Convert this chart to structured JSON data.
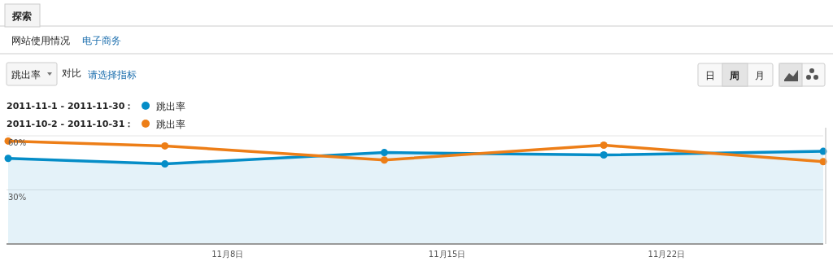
{
  "chart_data": {
    "type": "line",
    "annotations": [
      "探索",
      "网站使用情况",
      "电子商务",
      "跳出率",
      "对比",
      "请选择指标",
      "日",
      "周",
      "月",
      "2011-11-1 - 2011-11-30：",
      "2011-10-2 - 2011-10-31："
    ],
    "x": [
      "2011-11-01",
      "2011-11-06",
      "2011-11-13",
      "2011-11-20",
      "2011-11-27"
    ],
    "series": [
      {
        "name": "跳出率",
        "type": "area",
        "color": "#058dc7",
        "values": [
          47.5,
          44.4,
          50.7,
          49.4,
          51.4
        ]
      },
      {
        "name": "跳出率",
        "color": "#ed7e17",
        "values": [
          57.1,
          54.4,
          46.6,
          54.8,
          45.7
        ]
      }
    ],
    "xlim": [
      "2011-11-01",
      "2011-11-27"
    ],
    "ylim": [
      0,
      60
    ],
    "xticks": [
      {
        "value": "2011-11-08",
        "label": "11月8日"
      },
      {
        "value": "2011-11-15",
        "label": "11月15日"
      },
      {
        "value": "2011-11-22",
        "label": "11月22日"
      }
    ],
    "yticks": [
      {
        "value": 30,
        "label": "30%"
      },
      {
        "value": 60,
        "label": "60%"
      }
    ],
    "grid": "y",
    "legend": "top left",
    "marker": "circle",
    "line_style": "solid"
  }
}
